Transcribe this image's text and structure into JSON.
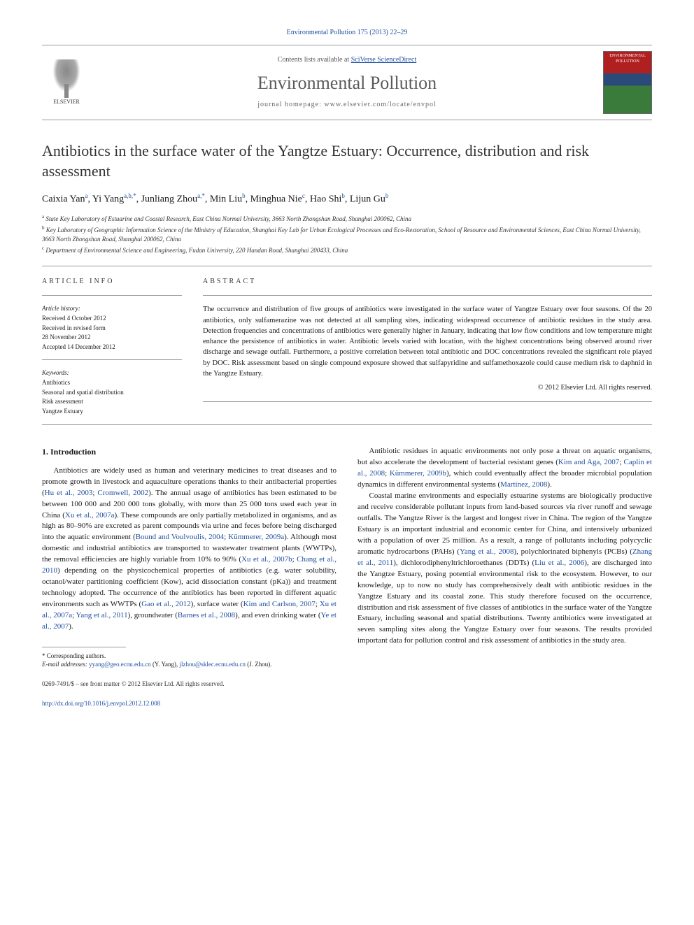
{
  "journal_ref": "Environmental Pollution 175 (2013) 22–29",
  "contents_bar": {
    "contents_label_pre": "Contents lists available at ",
    "contents_label_link": "SciVerse ScienceDirect",
    "journal_name": "Environmental Pollution",
    "homepage_label": "journal homepage: www.elsevier.com/locate/envpol",
    "elsevier_label": "ELSEVIER",
    "cover_text": "ENVIRONMENTAL POLLUTION"
  },
  "title": "Antibiotics in the surface water of the Yangtze Estuary: Occurrence, distribution and risk assessment",
  "authors_html": "Caixia Yan<sup>a</sup>, Yi Yang<sup>a,b,*</sup>, Junliang Zhou<sup>a,*</sup>, Min Liu<sup>b</sup>, Minghua Nie<sup>c</sup>, Hao Shi<sup>b</sup>, Lijun Gu<sup>b</sup>",
  "affiliations": [
    "a State Key Laboratory of Estuarine and Coastal Research, East China Normal University, 3663 North Zhongshan Road, Shanghai 200062, China",
    "b Key Laboratory of Geographic Information Science of the Ministry of Education, Shanghai Key Lab for Urban Ecological Processes and Eco-Restoration, School of Resource and Environmental Sciences, East China Normal University, 3663 North Zhongshan Road, Shanghai 200062, China",
    "c Department of Environmental Science and Engineering, Fudan University, 220 Handan Road, Shanghai 200433, China"
  ],
  "article_info": {
    "heading": "ARTICLE INFO",
    "history_label": "Article history:",
    "history": [
      "Received 4 October 2012",
      "Received in revised form",
      "28 November 2012",
      "Accepted 14 December 2012"
    ],
    "keywords_label": "Keywords:",
    "keywords": [
      "Antibiotics",
      "Seasonal and spatial distribution",
      "Risk assessment",
      "Yangtze Estuary"
    ]
  },
  "abstract": {
    "heading": "ABSTRACT",
    "text": "The occurrence and distribution of five groups of antibiotics were investigated in the surface water of Yangtze Estuary over four seasons. Of the 20 antibiotics, only sulfamerazine was not detected at all sampling sites, indicating widespread occurrence of antibiotic residues in the study area. Detection frequencies and concentrations of antibiotics were generally higher in January, indicating that low flow conditions and low temperature might enhance the persistence of antibiotics in water. Antibiotic levels varied with location, with the highest concentrations being observed around river discharge and sewage outfall. Furthermore, a positive correlation between total antibiotic and DOC concentrations revealed the significant role played by DOC. Risk assessment based on single compound exposure showed that sulfapyridine and sulfamethoxazole could cause medium risk to daphnid in the Yangtze Estuary.",
    "copyright": "© 2012 Elsevier Ltd. All rights reserved."
  },
  "intro": {
    "heading": "1. Introduction",
    "para1_pre": "Antibiotics are widely used as human and veterinary medicines to treat diseases and to promote growth in livestock and aquaculture operations thanks to their antibacterial properties (",
    "cite1": "Hu et al., 2003",
    "para1_sep1": "; ",
    "cite2": "Cromwell, 2002",
    "para1_mid1": "). The annual usage of antibiotics has been estimated to be between 100 000 and 200 000 tons globally, with more than 25 000 tons used each year in China (",
    "cite3": "Xu et al., 2007a",
    "para1_mid2": "). These compounds are only partially metabolized in organisms, and as high as 80–90% are excreted as parent compounds via urine and feces before being discharged into the aquatic environment (",
    "cite4": "Bound and Voulvoulis, 2004",
    "para1_sep2": "; ",
    "cite5": "Kümmerer, 2009a",
    "para1_mid3": "). Although most domestic and industrial antibiotics are transported to wastewater treatment plants (WWTPs), the removal efficiencies are highly variable from 10% to 90% (",
    "cite6": "Xu et al., 2007b",
    "para1_sep3": "; ",
    "cite7": "Chang et al., 2010",
    "para1_mid4": ") depending on the physicochemical properties of antibiotics (e.g. water solubility, octanol/water partitioning coefficient (Kow), acid dissociation constant (pKa)) and treatment technology adopted. The occurrence of the antibiotics has been reported in different aquatic environments such as WWTPs (",
    "cite8": "Gao et al., 2012",
    "para1_mid5": "), surface water (",
    "cite9": "Kim and Carlson, 2007",
    "para1_sep4": "; ",
    "cite10": "Xu et al., 2007a",
    "para1_sep5": "; ",
    "cite11": "Yang et al., 2011",
    "para1_mid6": "), groundwater (",
    "cite12": "Barnes et al., 2008",
    "para1_mid7": "), and even drinking water (",
    "cite13": "Ye et al., 2007",
    "para1_end": ").",
    "para2_pre": "Antibiotic residues in aquatic environments not only pose a threat on aquatic organisms, but also accelerate the development of bacterial resistant genes (",
    "cite14": "Kim and Aga, 2007",
    "para2_sep1": "; ",
    "cite15": "Caplin et al., 2008",
    "para2_sep2": "; ",
    "cite16": "Kümmerer, 2009b",
    "para2_mid1": "), which could eventually affect the broader microbial population dynamics in different environmental systems (",
    "cite17": "Martínez, 2008",
    "para2_end": ").",
    "para3_pre": "Coastal marine environments and especially estuarine systems are biologically productive and receive considerable pollutant inputs from land-based sources via river runoff and sewage outfalls. The Yangtze River is the largest and longest river in China. The region of the Yangtze Estuary is an important industrial and economic center for China, and intensively urbanized with a population of over 25 million. As a result, a range of pollutants including polycyclic aromatic hydrocarbons (PAHs) (",
    "cite18": "Yang et al., 2008",
    "para3_mid1": "), polychlorinated biphenyls (PCBs) (",
    "cite19": "Zhang et al., 2011",
    "para3_mid2": "), dichlorodiphenyltrichloroethanes (DDTs) (",
    "cite20": "Liu et al., 2006",
    "para3_end": "), are discharged into the Yangtze Estuary, posing potential environmental risk to the ecosystem. However, to our knowledge, up to now no study has comprehensively dealt with antibiotic residues in the Yangtze Estuary and its coastal zone. This study therefore focused on the occurrence, distribution and risk assessment of five classes of antibiotics in the surface water of the Yangtze Estuary, including seasonal and spatial distributions. Twenty antibiotics were investigated at seven sampling sites along the Yangtze Estuary over four seasons. The results provided important data for pollution control and risk assessment of antibiotics in the study area."
  },
  "footnotes": {
    "corr_label": "* Corresponding authors.",
    "email_label": "E-mail addresses: ",
    "email1": "yyang@geo.ecnu.edu.cn",
    "email1_name": " (Y. Yang), ",
    "email2": "jlzhou@sklec.ecnu.edu.cn",
    "email2_name": " (J. Zhou)."
  },
  "footer": {
    "issn_line": "0269-7491/$ – see front matter © 2012 Elsevier Ltd. All rights reserved.",
    "doi": "http://dx.doi.org/10.1016/j.envpol.2012.12.008"
  },
  "colors": {
    "link": "#2050a0",
    "text": "#1a1a1a",
    "rule": "#999"
  }
}
